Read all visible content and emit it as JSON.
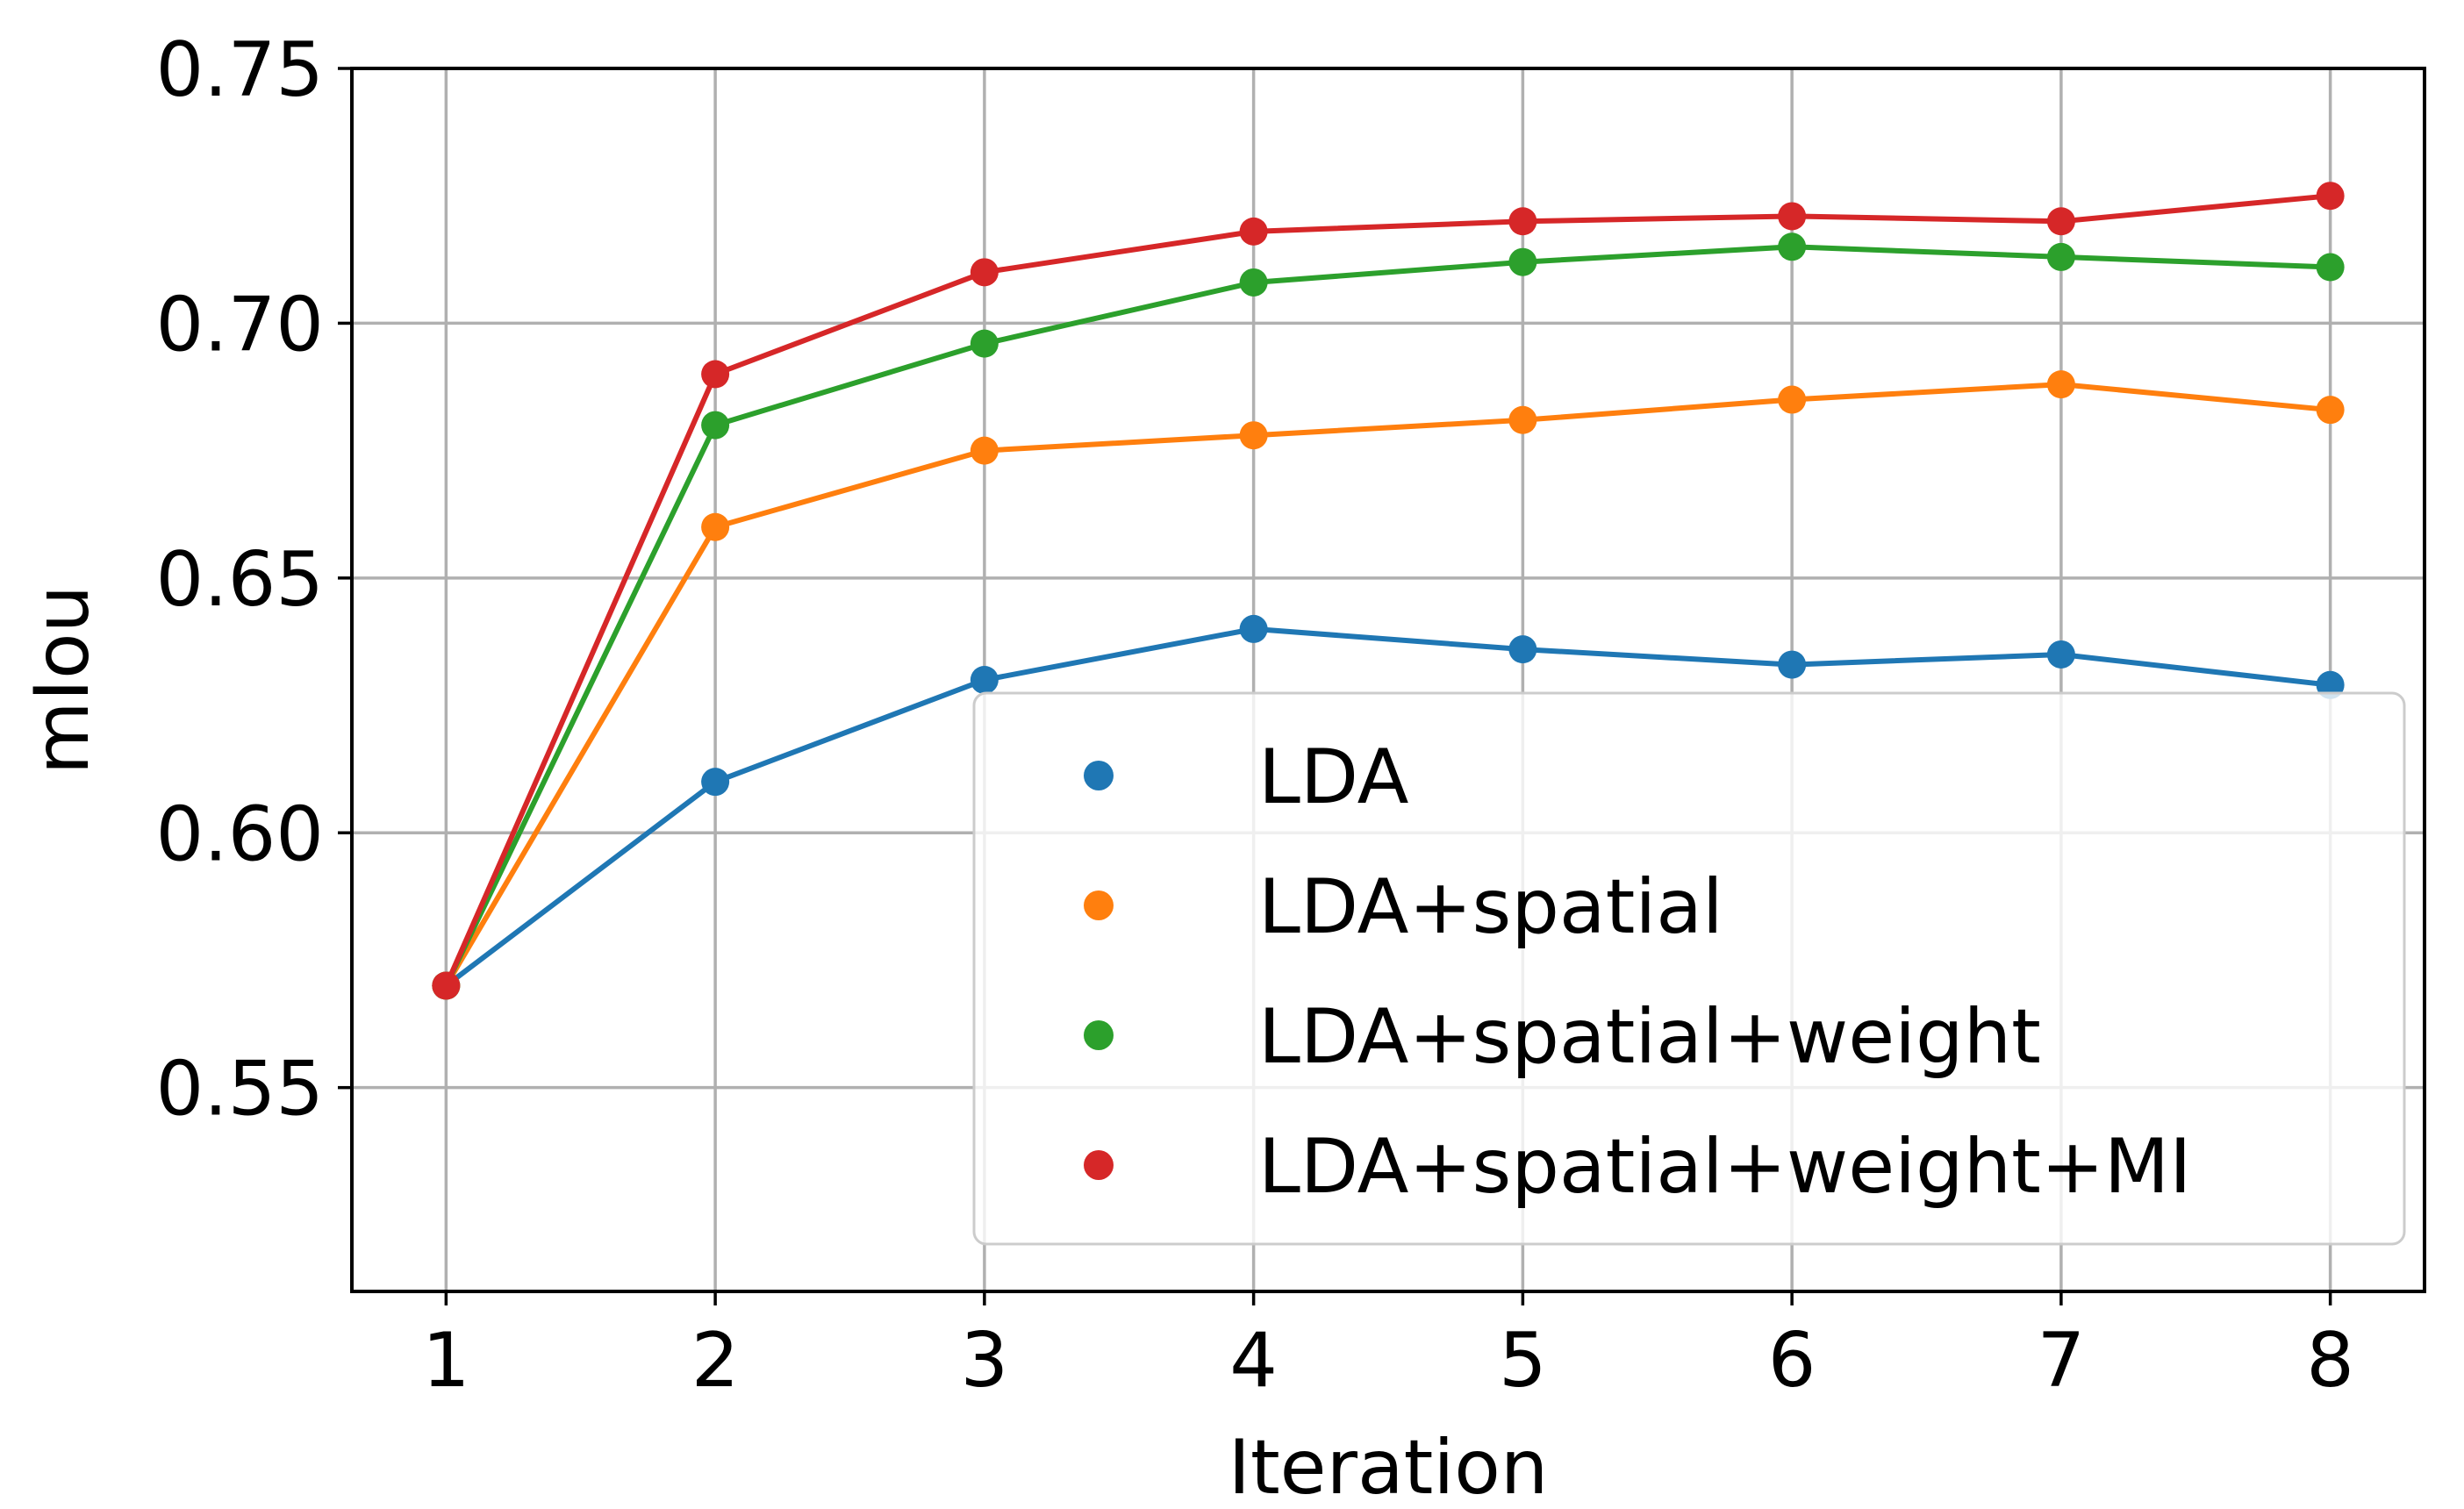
{
  "chart_data": {
    "type": "line",
    "title": "",
    "xlabel": "Iteration",
    "ylabel": "mIou",
    "x": [
      1,
      2,
      3,
      4,
      5,
      6,
      7,
      8
    ],
    "xlim": [
      0.65,
      8.35
    ],
    "ylim": [
      0.51,
      0.75
    ],
    "xticks": [
      "1",
      "2",
      "3",
      "4",
      "5",
      "6",
      "7",
      "8"
    ],
    "yticks": [
      "0.55",
      "0.60",
      "0.65",
      "0.70",
      "0.75"
    ],
    "grid": true,
    "legend_position": "lower-right",
    "series": [
      {
        "name": "LDA",
        "color": "#1f77b4",
        "values": [
          0.57,
          0.61,
          0.63,
          0.64,
          0.636,
          0.633,
          0.635,
          0.629
        ]
      },
      {
        "name": "LDA+spatial",
        "color": "#ff7f0e",
        "values": [
          0.57,
          0.66,
          0.675,
          0.678,
          0.681,
          0.685,
          0.688,
          0.683
        ]
      },
      {
        "name": "LDA+spatial+weight",
        "color": "#2ca02c",
        "values": [
          0.57,
          0.68,
          0.696,
          0.708,
          0.712,
          0.715,
          0.713,
          0.711
        ]
      },
      {
        "name": "LDA+spatial+weight+MI",
        "color": "#d62728",
        "values": [
          0.57,
          0.69,
          0.71,
          0.718,
          0.72,
          0.721,
          0.72,
          0.725
        ]
      }
    ]
  }
}
